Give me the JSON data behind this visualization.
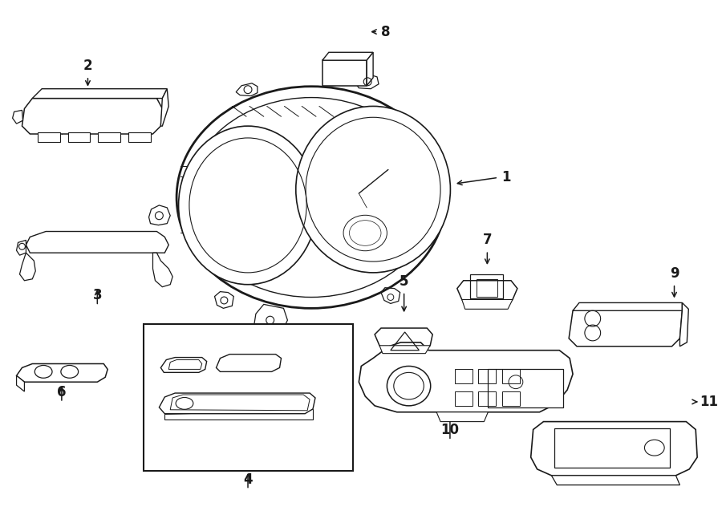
{
  "bg_color": "#ffffff",
  "line_color": "#1a1a1a",
  "line_width": 1.0,
  "fig_width": 9.0,
  "fig_height": 6.62,
  "dpi": 100
}
